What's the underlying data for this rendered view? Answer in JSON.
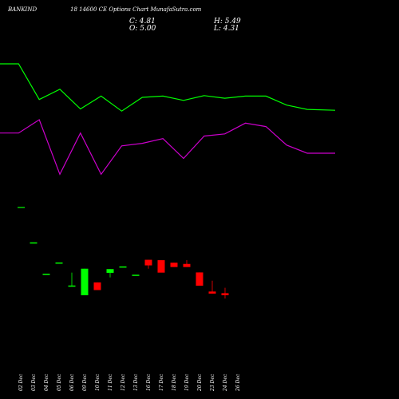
{
  "header": {
    "symbol": "BANKIND",
    "title": "18 14600 CE Options Chart MunafaSutra.com",
    "close": "C: 4.81",
    "open": "O: 5.00",
    "high": "H: 5.49",
    "low": "L: 4.31"
  },
  "colors": {
    "background": "#000000",
    "green": "#00ff00",
    "magenta": "#cc00cc",
    "bull": "#00ff00",
    "bear": "#ff0000",
    "text": "#ffffff"
  },
  "chart_data": {
    "type": "candlestick",
    "categories": [
      "02 Dec",
      "03 Dec",
      "04 Dec",
      "05 Dec",
      "06 Dec",
      "09 Dec",
      "10 Dec",
      "11 Dec",
      "12 Dec",
      "13 Dec",
      "16 Dec",
      "17 Dec",
      "18 Dec",
      "19 Dec",
      "20 Dec",
      "23 Dec",
      "24 Dec",
      "26 Dec"
    ],
    "candles": [
      {
        "o": 25.5,
        "h": 25.5,
        "l": 25.5,
        "c": 25.5,
        "dir": "up"
      },
      {
        "o": 10.4,
        "h": 10.4,
        "l": 10.0,
        "c": 10.0,
        "dir": "up"
      },
      {
        "o": 15.8,
        "h": 15.8,
        "l": 15.8,
        "c": 15.8,
        "dir": "up"
      },
      {
        "o": 4.2,
        "h": 10.9,
        "l": 4.2,
        "c": 4.7,
        "dir": "up"
      },
      {
        "o": 0.0,
        "h": 12.8,
        "l": 0.0,
        "c": 12.8,
        "dir": "up"
      },
      {
        "o": 6.2,
        "h": 6.2,
        "l": 2.5,
        "c": 2.5,
        "dir": "down"
      },
      {
        "o": 10.8,
        "h": 12.6,
        "l": 8.6,
        "c": 12.6,
        "dir": "up"
      },
      {
        "o": 13.9,
        "h": 13.9,
        "l": 13.9,
        "c": 13.9,
        "dir": "up"
      },
      {
        "o": 9.9,
        "h": 9.9,
        "l": 9.9,
        "c": 9.9,
        "dir": "up"
      },
      {
        "o": 17.1,
        "h": 17.1,
        "l": 12.8,
        "c": 14.4,
        "dir": "down"
      },
      {
        "o": 16.9,
        "h": 16.9,
        "l": 11.5,
        "c": 10.9,
        "dir": "down"
      },
      {
        "o": 15.7,
        "h": 15.7,
        "l": 13.6,
        "c": 13.6,
        "dir": "down"
      },
      {
        "o": 15.1,
        "h": 16.9,
        "l": 13.6,
        "c": 13.6,
        "dir": "down"
      },
      {
        "o": 11.0,
        "h": 11.0,
        "l": 4.6,
        "c": 4.6,
        "dir": "down"
      },
      {
        "o": 1.8,
        "h": 7.0,
        "l": 0.8,
        "c": 0.8,
        "dir": "down"
      },
      {
        "o": 1.0,
        "h": 3.6,
        "l": -1.6,
        "c": 0.0,
        "dir": "down"
      }
    ],
    "candle_index": [
      1,
      2,
      3,
      4,
      5,
      6,
      7,
      8,
      9,
      10,
      11,
      12,
      13,
      14,
      15,
      16
    ],
    "ma_green": [
      48.5,
      48.5,
      40.2,
      42.6,
      38.0,
      41.0,
      37.5,
      40.7,
      41.0,
      40.0,
      41.1,
      40.5,
      41.0,
      41.0,
      38.9,
      37.9,
      37.7
    ],
    "ma_magenta": [
      32.4,
      32.4,
      35.5,
      22.8,
      32.4,
      22.8,
      29.4,
      30.0,
      31.1,
      26.5,
      31.7,
      32.2,
      34.7,
      33.9,
      29.6,
      27.7,
      27.7
    ],
    "ma_x": [
      0,
      1.4,
      2.95,
      4.5,
      6.05,
      7.6,
      9.15,
      10.7,
      12.25,
      13.8,
      15.35,
      16.9,
      18.45,
      20.0,
      21.55,
      23.1,
      25.2
    ],
    "xlim": [
      0,
      25.2
    ],
    "ylim": [
      -10,
      55
    ]
  }
}
